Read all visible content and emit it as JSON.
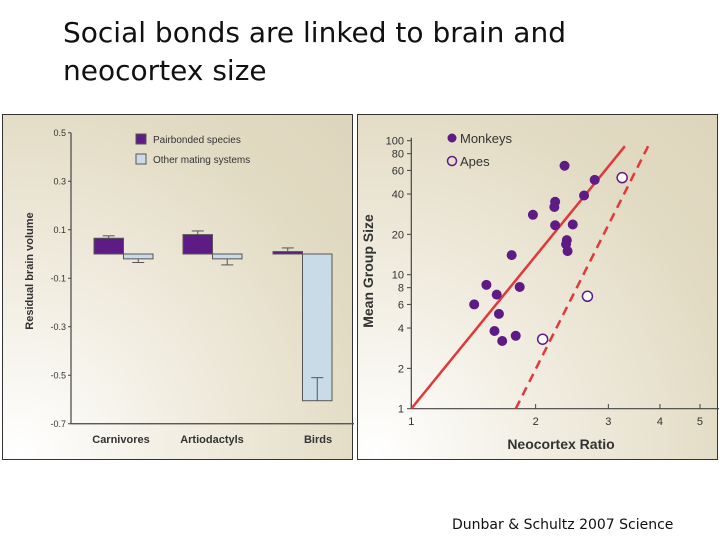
{
  "slide": {
    "title_line1": "Social bonds are linked to brain and",
    "title_line2": "neocortex size",
    "citation": "Dunbar & Schultz 2007 Science"
  },
  "chart_data": [
    {
      "type": "bar",
      "title": "",
      "xlabel": "",
      "ylabel": "Residual brain volume",
      "ylim": [
        -0.7,
        0.5
      ],
      "yticks": [
        "0.5",
        "0.3",
        "0.1",
        "-0.1",
        "-0.3",
        "-0.5",
        "-0.7"
      ],
      "categories": [
        "Carnivores",
        "Artiodactyls",
        "Birds"
      ],
      "legend_position": "top",
      "grid": false,
      "series": [
        {
          "name": "Pairbonded species",
          "color": "#5e1a85",
          "values": [
            0.065,
            0.08,
            0.01
          ],
          "error_ends": [
            0.075,
            0.095,
            0.025
          ]
        },
        {
          "name": "Other mating systems",
          "color": "#c9dbe6",
          "values": [
            -0.02,
            -0.02,
            -0.605
          ],
          "error_ends": [
            -0.035,
            -0.045,
            -0.51
          ]
        }
      ]
    },
    {
      "type": "scatter",
      "title": "",
      "xlabel": "Neocortex Ratio",
      "ylabel": "Mean Group Size",
      "xscale": "log",
      "yscale": "log",
      "xlim": [
        1,
        5.3
      ],
      "ylim": [
        1,
        100
      ],
      "xticks": [
        "1",
        "2",
        "3",
        "4",
        "5"
      ],
      "yticks": [
        "1",
        "2",
        "4",
        "6",
        "8",
        "10",
        "20",
        "40",
        "60",
        "80",
        "100"
      ],
      "legend_position": "top-left",
      "grid": false,
      "marker_color": "#5e1a85",
      "line_color": "#e0393b",
      "series": [
        {
          "name": "Monkeys",
          "marker": "filled-circle",
          "x": [
            2.35,
            2.78,
            2.62,
            2.23,
            2.22,
            1.97,
            2.23,
            2.46,
            2.38,
            2.37,
            2.39,
            1.75,
            1.52,
            1.83,
            1.61,
            1.42,
            1.63,
            1.59,
            1.79,
            1.66
          ],
          "y": [
            65,
            51,
            39,
            35,
            32,
            28,
            23.4,
            23.7,
            18.1,
            16.9,
            15.0,
            14.0,
            8.4,
            8.1,
            7.1,
            6.0,
            5.1,
            3.8,
            3.5,
            3.2
          ]
        },
        {
          "name": "Apes",
          "marker": "open-circle",
          "x": [
            2.08,
            2.67,
            3.24
          ],
          "y": [
            3.3,
            6.9,
            53
          ]
        }
      ],
      "lines": [
        {
          "style": "solid",
          "x": [
            1,
            3.29
          ],
          "y": [
            1,
            91
          ]
        },
        {
          "style": "dashed",
          "x": [
            1.79,
            3.8
          ],
          "y": [
            1,
            99.5
          ]
        }
      ]
    }
  ]
}
